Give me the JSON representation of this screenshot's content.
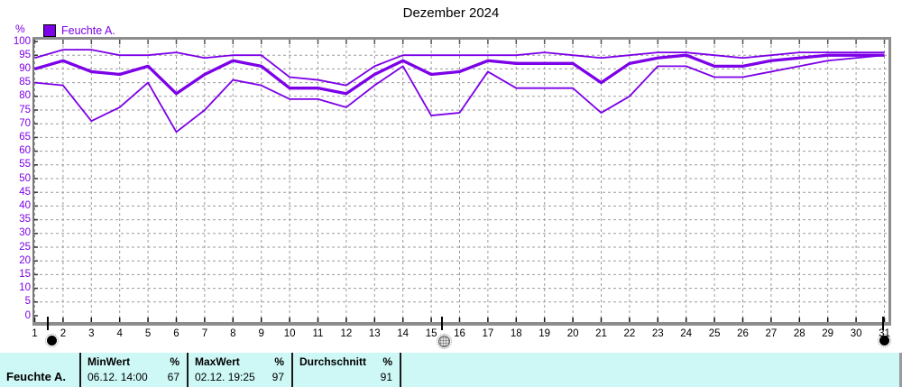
{
  "title": "Dezember 2024",
  "y_unit_label": "%",
  "legend": {
    "label": "Feuchte A."
  },
  "colors": {
    "accent": "#7c00e8",
    "line": "#7c00e8",
    "grid": "#9b9b9b",
    "frame": "#8d8d8d",
    "table_bg": "#cdf8f6",
    "axis_label": "#000000"
  },
  "chart_data": {
    "type": "line",
    "title": "Dezember 2024",
    "ylabel": "%",
    "xlabel": "",
    "x": [
      1,
      2,
      3,
      4,
      5,
      6,
      7,
      8,
      9,
      10,
      11,
      12,
      13,
      14,
      15,
      16,
      17,
      18,
      19,
      20,
      21,
      22,
      23,
      24,
      25,
      26,
      27,
      28,
      29,
      30,
      31
    ],
    "ylim": [
      0,
      100
    ],
    "y_tick_step": 5,
    "grid": true,
    "legend_entries": [
      "Feuchte A."
    ],
    "legend_position": "top-left",
    "series": [
      {
        "name": "MaxWert",
        "values": [
          94,
          97,
          97,
          95,
          95,
          96,
          94,
          95,
          95,
          87,
          86,
          84,
          91,
          95,
          95,
          95,
          95,
          95,
          96,
          95,
          94,
          95,
          96,
          96,
          95,
          94,
          95,
          96,
          96,
          96,
          96
        ]
      },
      {
        "name": "Durchschnitt",
        "values": [
          90,
          93,
          89,
          88,
          91,
          81,
          88,
          93,
          91,
          83,
          83,
          81,
          88,
          93,
          88,
          89,
          93,
          92,
          92,
          92,
          85,
          92,
          94,
          95,
          91,
          91,
          93,
          94,
          95,
          95,
          95
        ]
      },
      {
        "name": "MinWert",
        "values": [
          85,
          84,
          71,
          76,
          85,
          67,
          75,
          86,
          84,
          79,
          79,
          76,
          84,
          91,
          73,
          74,
          89,
          83,
          83,
          83,
          74,
          80,
          91,
          91,
          87,
          87,
          89,
          91,
          93,
          94,
          95
        ]
      }
    ]
  },
  "slider": {
    "left_day": "1",
    "mid_day": "15.5",
    "right_day": "31"
  },
  "summary_table": {
    "row_label": "Feuchte A.",
    "columns": [
      {
        "header": "MinWert",
        "unit": "%",
        "value_text": "06.12. 14:00",
        "value": "67"
      },
      {
        "header": "MaxWert",
        "unit": "%",
        "value_text": "02.12. 19:25",
        "value": "97"
      },
      {
        "header": "Durchschnitt",
        "unit": "%",
        "value_text": "",
        "value": "91"
      }
    ]
  }
}
